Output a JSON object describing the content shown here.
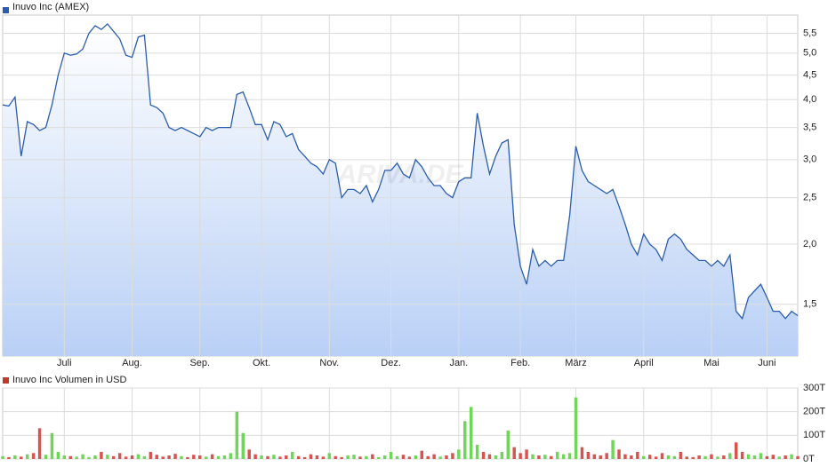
{
  "chart_data": [
    {
      "type": "line",
      "title": "Inuvo Inc (AMEX)",
      "color": "#2a5db0",
      "log_scale": true,
      "grid": true,
      "watermark": "ARIVA.DE",
      "categories": [
        null,
        null,
        null,
        null,
        null,
        null,
        null,
        null,
        null,
        null,
        "Juli",
        null,
        null,
        null,
        null,
        null,
        null,
        null,
        null,
        null,
        null,
        "Aug.",
        null,
        null,
        null,
        null,
        null,
        null,
        null,
        null,
        null,
        null,
        "Sep.",
        null,
        null,
        null,
        null,
        null,
        null,
        null,
        null,
        null,
        "Okt.",
        null,
        null,
        null,
        null,
        null,
        null,
        null,
        null,
        null,
        null,
        "Nov.",
        null,
        null,
        null,
        null,
        null,
        null,
        null,
        null,
        null,
        "Dez.",
        null,
        null,
        null,
        null,
        null,
        null,
        null,
        null,
        null,
        null,
        "Jan.",
        null,
        null,
        null,
        null,
        null,
        null,
        null,
        null,
        null,
        "Feb.",
        null,
        null,
        null,
        null,
        null,
        null,
        null,
        null,
        "März",
        null,
        null,
        null,
        null,
        null,
        null,
        null,
        null,
        null,
        null,
        "April",
        null,
        null,
        null,
        null,
        null,
        null,
        null,
        null,
        null,
        null,
        "Mai",
        null,
        null,
        null,
        null,
        null,
        null,
        null,
        null,
        "Juni",
        null,
        null,
        null,
        null,
        null
      ],
      "values": [
        3.9,
        3.88,
        4.05,
        3.05,
        3.6,
        3.55,
        3.45,
        3.5,
        3.9,
        4.5,
        5.0,
        4.95,
        4.98,
        5.1,
        5.5,
        5.7,
        5.6,
        5.75,
        5.55,
        5.35,
        4.95,
        4.9,
        5.4,
        5.45,
        3.9,
        3.85,
        3.75,
        3.5,
        3.45,
        3.5,
        3.45,
        3.4,
        3.35,
        3.5,
        3.45,
        3.5,
        3.5,
        3.5,
        4.1,
        4.15,
        3.85,
        3.55,
        3.55,
        3.3,
        3.6,
        3.55,
        3.35,
        3.4,
        3.15,
        3.05,
        2.95,
        2.9,
        2.8,
        3.0,
        2.95,
        2.5,
        2.6,
        2.6,
        2.55,
        2.65,
        2.45,
        2.6,
        2.85,
        2.85,
        2.95,
        2.8,
        2.75,
        3.0,
        2.9,
        2.75,
        2.65,
        2.65,
        2.55,
        2.5,
        2.7,
        2.75,
        2.75,
        3.75,
        3.2,
        2.8,
        3.05,
        3.25,
        3.3,
        2.2,
        1.8,
        1.65,
        1.95,
        1.8,
        1.85,
        1.8,
        1.85,
        1.85,
        2.3,
        3.2,
        2.85,
        2.7,
        2.65,
        2.6,
        2.55,
        2.6,
        2.4,
        2.2,
        2.0,
        1.9,
        2.1,
        2.0,
        1.95,
        1.85,
        2.05,
        2.1,
        2.05,
        1.95,
        1.9,
        1.85,
        1.85,
        1.8,
        1.85,
        1.8,
        1.9,
        1.45,
        1.4,
        1.55,
        1.6,
        1.65,
        1.55,
        1.45,
        1.45,
        1.4,
        1.45,
        1.42
      ],
      "ylim": [
        1.17,
        6.0
      ],
      "yticks": [
        {
          "value": 1.5,
          "label": "1,5"
        },
        {
          "value": 2.0,
          "label": "2,0"
        },
        {
          "value": 2.5,
          "label": "2,5"
        },
        {
          "value": 3.0,
          "label": "3,0"
        },
        {
          "value": 3.5,
          "label": "3,5"
        },
        {
          "value": 4.0,
          "label": "4,0"
        },
        {
          "value": 4.5,
          "label": "4,5"
        },
        {
          "value": 5.0,
          "label": "5,0"
        },
        {
          "value": 5.5,
          "label": "5,5"
        }
      ]
    },
    {
      "type": "bar",
      "title": "Inuvo Inc Volumen in USD",
      "color": "#c0392b",
      "up_color": "#6fd65a",
      "down_color": "#d9534f",
      "grid": true,
      "values": [
        12,
        8,
        15,
        10,
        20,
        25,
        130,
        18,
        110,
        30,
        15,
        12,
        10,
        20,
        8,
        15,
        30,
        18,
        12,
        25,
        10,
        15,
        20,
        12,
        30,
        18,
        10,
        15,
        22,
        12,
        8,
        18,
        15,
        10,
        20,
        12,
        15,
        25,
        200,
        110,
        40,
        20,
        15,
        12,
        18,
        10,
        15,
        30,
        12,
        8,
        20,
        15,
        10,
        25,
        12,
        8,
        15,
        18,
        10,
        12,
        20,
        8,
        15,
        30,
        12,
        18,
        10,
        15,
        35,
        12,
        20,
        10,
        15,
        25,
        40,
        160,
        220,
        60,
        30,
        20,
        15,
        30,
        120,
        50,
        25,
        40,
        20,
        15,
        18,
        12,
        30,
        20,
        25,
        260,
        50,
        30,
        20,
        15,
        25,
        80,
        40,
        20,
        15,
        30,
        12,
        18,
        10,
        25,
        15,
        12,
        30,
        10,
        8,
        15,
        12,
        20,
        10,
        15,
        25,
        70,
        30,
        20,
        15,
        25,
        12,
        18,
        10,
        15,
        20,
        12
      ],
      "ylim": [
        0,
        300
      ],
      "yticks": [
        {
          "value": 0,
          "label": "0T"
        },
        {
          "value": 100,
          "label": "100T"
        },
        {
          "value": 200,
          "label": "200T"
        },
        {
          "value": 300,
          "label": "300T"
        }
      ]
    }
  ]
}
